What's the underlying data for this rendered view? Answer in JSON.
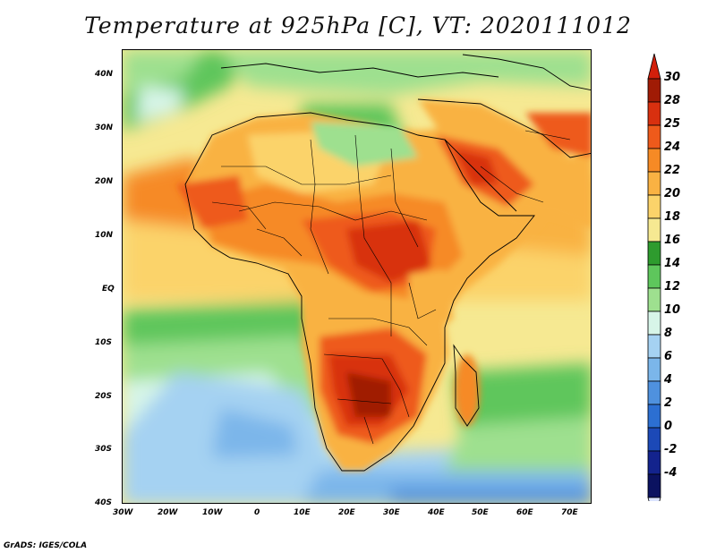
{
  "title": "Temperature at 925hPa [C], VT: 2020111012",
  "credit": "GrADS: IGES/COLA",
  "axes": {
    "lat_labels": [
      "40N",
      "30N",
      "20N",
      "10N",
      "EQ",
      "10S",
      "20S",
      "30S",
      "40S"
    ],
    "lon_labels": [
      "30W",
      "20W",
      "10W",
      "0",
      "10E",
      "20E",
      "30E",
      "40E",
      "50E",
      "60E",
      "70E"
    ]
  },
  "colorbar": {
    "labels": [
      "30",
      "28",
      "25",
      "24",
      "22",
      "20",
      "18",
      "16",
      "14",
      "12",
      "10",
      "8",
      "6",
      "4",
      "2",
      "0",
      "-2",
      "-4"
    ],
    "colors": [
      "#a01b05",
      "#d8300f",
      "#ee5a1b",
      "#f68a25",
      "#f9b243",
      "#fbd36a",
      "#f6e992",
      "#2e9b2e",
      "#5ec65c",
      "#9ee08f",
      "#d7f5e8",
      "#a5d2f2",
      "#7bb6ea",
      "#4f91de",
      "#2c6fd2",
      "#1c49b7",
      "#13238d",
      "#0b1260"
    ],
    "over_color": "#d21f0b",
    "under_color": "#dbe4ff"
  }
}
